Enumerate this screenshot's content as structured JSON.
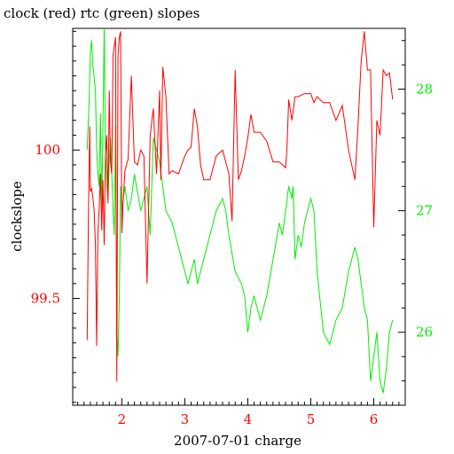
{
  "chart_data": {
    "type": "line",
    "title": "clock (red) rtc (green) slopes",
    "xlabel": "2007-07-01 charge",
    "ylabel": "clockslope",
    "xlim": [
      1.22,
      6.5
    ],
    "ylim_left": [
      99.14,
      100.41
    ],
    "ylim_right": [
      25.4,
      28.5
    ],
    "x_ticks": [
      "2",
      "3",
      "4",
      "5",
      "6"
    ],
    "y_left_ticks": [
      "99.5",
      "100"
    ],
    "y_right_ticks": [
      "26",
      "27",
      "28"
    ],
    "grid": false,
    "colors": {
      "clock": "#ff0000",
      "rtc": "#00ee00",
      "axis": "#000000"
    },
    "series": [
      {
        "name": "clock",
        "axis": "left",
        "color": "#ff0000",
        "x": [
          1.45,
          1.47,
          1.49,
          1.5,
          1.52,
          1.54,
          1.56,
          1.58,
          1.6,
          1.62,
          1.64,
          1.66,
          1.68,
          1.7,
          1.72,
          1.74,
          1.76,
          1.78,
          1.8,
          1.82,
          1.84,
          1.86,
          1.88,
          1.9,
          1.92,
          1.94,
          1.96,
          1.98,
          2.0,
          2.02,
          2.05,
          2.1,
          2.15,
          2.2,
          2.25,
          2.3,
          2.35,
          2.4,
          2.45,
          2.5,
          2.55,
          2.6,
          2.62,
          2.65,
          2.7,
          2.75,
          2.8,
          2.9,
          3.0,
          3.05,
          3.1,
          3.15,
          3.2,
          3.25,
          3.3,
          3.4,
          3.5,
          3.6,
          3.7,
          3.75,
          3.8,
          3.85,
          3.9,
          3.95,
          4.0,
          4.05,
          4.1,
          4.2,
          4.3,
          4.4,
          4.5,
          4.6,
          4.62,
          4.65,
          4.7,
          4.75,
          4.8,
          4.9,
          5.0,
          5.05,
          5.1,
          5.2,
          5.3,
          5.4,
          5.5,
          5.6,
          5.7,
          5.75,
          5.8,
          5.85,
          5.9,
          5.95,
          6.0,
          6.05,
          6.1,
          6.15,
          6.2,
          6.25,
          6.3
        ],
        "values": [
          99.36,
          99.8,
          100.08,
          99.86,
          99.87,
          99.84,
          99.8,
          99.68,
          99.34,
          99.72,
          99.8,
          99.92,
          99.73,
          99.9,
          99.68,
          99.98,
          100.05,
          99.82,
          100.2,
          99.96,
          99.92,
          100.32,
          100.35,
          100.38,
          99.22,
          100.32,
          100.38,
          100.4,
          99.72,
          99.82,
          99.93,
          99.97,
          100.25,
          99.96,
          99.95,
          100.0,
          99.98,
          99.55,
          100.05,
          100.14,
          99.92,
          100.2,
          99.9,
          100.28,
          100.18,
          99.92,
          99.93,
          99.92,
          99.98,
          100.0,
          100.01,
          100.14,
          100.08,
          99.95,
          99.9,
          99.9,
          99.98,
          100.0,
          99.92,
          99.76,
          100.27,
          99.9,
          99.93,
          99.98,
          100.04,
          100.12,
          100.06,
          100.06,
          100.03,
          99.96,
          99.96,
          99.94,
          100.0,
          100.17,
          100.1,
          100.18,
          100.18,
          100.19,
          100.19,
          100.16,
          100.18,
          100.16,
          100.16,
          100.1,
          100.15,
          100.0,
          99.9,
          100.08,
          100.3,
          100.4,
          100.27,
          100.27,
          99.74,
          100.1,
          100.05,
          100.27,
          100.25,
          100.26,
          100.17
        ]
      },
      {
        "name": "rtc",
        "axis": "right",
        "color": "#00ee00",
        "x": [
          1.45,
          1.48,
          1.5,
          1.52,
          1.54,
          1.56,
          1.58,
          1.6,
          1.62,
          1.64,
          1.66,
          1.68,
          1.7,
          1.72,
          1.74,
          1.76,
          1.78,
          1.8,
          1.82,
          1.84,
          1.86,
          1.88,
          1.9,
          1.92,
          1.94,
          1.96,
          1.98,
          2.0,
          2.05,
          2.1,
          2.15,
          2.2,
          2.3,
          2.4,
          2.45,
          2.5,
          2.55,
          2.6,
          2.7,
          2.8,
          2.9,
          3.0,
          3.05,
          3.1,
          3.15,
          3.2,
          3.3,
          3.4,
          3.5,
          3.6,
          3.65,
          3.7,
          3.8,
          3.9,
          3.95,
          4.0,
          4.05,
          4.1,
          4.2,
          4.3,
          4.4,
          4.5,
          4.55,
          4.6,
          4.65,
          4.7,
          4.72,
          4.75,
          4.8,
          4.85,
          4.9,
          4.95,
          5.0,
          5.05,
          5.1,
          5.2,
          5.3,
          5.4,
          5.5,
          5.6,
          5.7,
          5.75,
          5.8,
          5.85,
          5.9,
          5.95,
          6.0,
          6.05,
          6.1,
          6.15,
          6.2,
          6.25,
          6.3
        ],
        "values": [
          27.5,
          27.9,
          28.3,
          28.4,
          28.2,
          28.1,
          28.0,
          27.5,
          27.3,
          27.2,
          27.8,
          27.0,
          27.7,
          28.5,
          27.5,
          27.2,
          27.1,
          27.4,
          27.6,
          27.3,
          27.0,
          26.8,
          27.7,
          26.0,
          25.8,
          26.3,
          27.2,
          27.0,
          27.2,
          27.0,
          27.1,
          27.3,
          27.0,
          27.2,
          26.8,
          27.6,
          27.5,
          27.4,
          27.0,
          26.9,
          26.7,
          26.5,
          26.4,
          26.5,
          26.6,
          26.4,
          26.6,
          26.8,
          27.0,
          27.1,
          27.0,
          26.8,
          26.5,
          26.4,
          26.3,
          26.0,
          26.2,
          26.3,
          26.1,
          26.3,
          26.6,
          26.9,
          26.8,
          27.0,
          27.2,
          27.1,
          27.2,
          26.6,
          26.8,
          26.7,
          26.9,
          27.0,
          27.1,
          27.0,
          26.5,
          26.0,
          25.9,
          26.1,
          26.2,
          26.5,
          26.7,
          26.6,
          26.4,
          26.2,
          26.1,
          25.6,
          25.8,
          26.0,
          25.6,
          25.5,
          25.7,
          26.0,
          26.1
        ]
      }
    ]
  }
}
